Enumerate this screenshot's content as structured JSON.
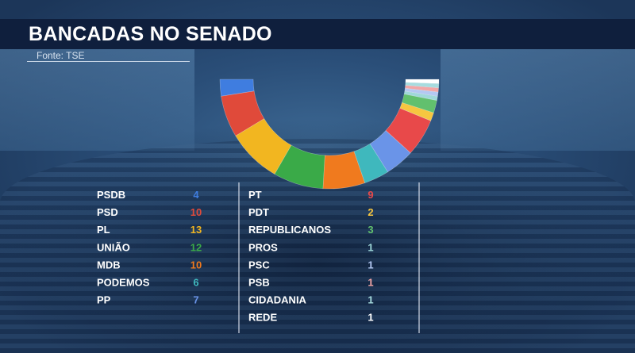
{
  "header": {
    "title": "BANCADAS NO SENADO",
    "source": "Fonte: TSE"
  },
  "colors": {
    "header_bg": "#0f1f3d",
    "label": "#ffffff"
  },
  "chart_data": {
    "type": "parliament",
    "title": "BANCADAS NO SENADO",
    "total_seats": 81,
    "series": [
      {
        "name": "PSDB",
        "value": 4,
        "color": "#3f7de0"
      },
      {
        "name": "PSD",
        "value": 10,
        "color": "#e04a3a"
      },
      {
        "name": "PL",
        "value": 13,
        "color": "#f2b620"
      },
      {
        "name": "UNIÃO",
        "value": 12,
        "color": "#3aaa48"
      },
      {
        "name": "MDB",
        "value": 10,
        "color": "#f07a1e"
      },
      {
        "name": "PODEMOS",
        "value": 6,
        "color": "#3fb8bd"
      },
      {
        "name": "PP",
        "value": 7,
        "color": "#6a94e8"
      },
      {
        "name": "PT",
        "value": 9,
        "color": "#e8494a"
      },
      {
        "name": "PDT",
        "value": 2,
        "color": "#f6c640"
      },
      {
        "name": "REPUBLICANOS",
        "value": 3,
        "color": "#62c06e"
      },
      {
        "name": "PROS",
        "value": 1,
        "color": "#9fd8da"
      },
      {
        "name": "PSC",
        "value": 1,
        "color": "#b3c8f2"
      },
      {
        "name": "PSB",
        "value": 1,
        "color": "#f2a6a6"
      },
      {
        "name": "CIDADANIA",
        "value": 1,
        "color": "#a7dcdf"
      },
      {
        "name": "REDE",
        "value": 1,
        "color": "#ffffff"
      }
    ],
    "arc_order": [
      "PSDB",
      "PSD",
      "PL",
      "UNIÃO",
      "MDB",
      "PODEMOS",
      "PP",
      "PT",
      "PDT",
      "REPUBLICANOS",
      "PROS",
      "PSC",
      "PSB",
      "CIDADANIA",
      "REDE"
    ],
    "legend_columns": [
      [
        "PSDB",
        "PSD",
        "PL",
        "UNIÃO",
        "MDB",
        "PODEMOS",
        "PP"
      ],
      [
        "PT",
        "PDT",
        "REPUBLICANOS",
        "PROS",
        "PSC",
        "PSB",
        "CIDADANIA",
        "REDE"
      ]
    ]
  }
}
